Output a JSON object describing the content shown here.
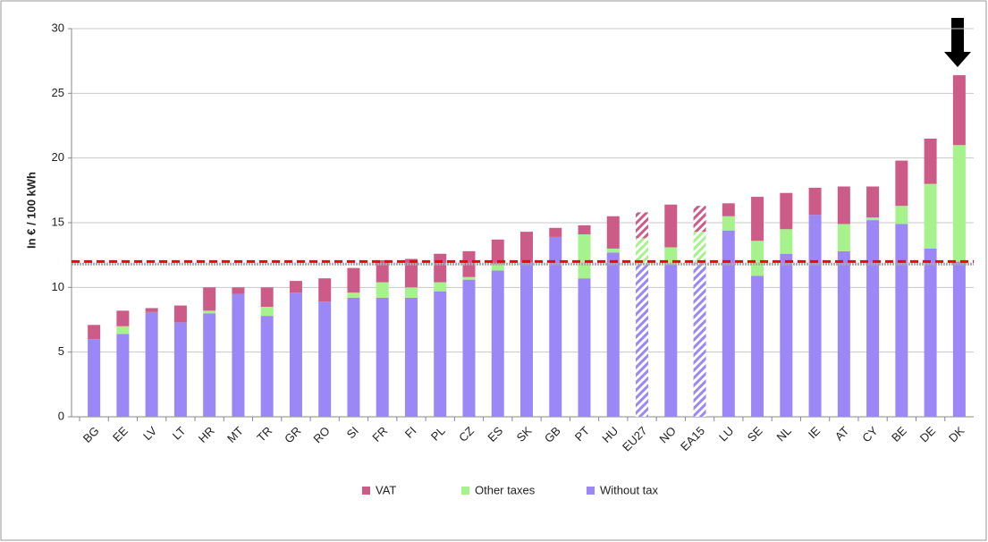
{
  "chart_data": {
    "type": "stacked_bar",
    "y_label": "In € / 100 kWh",
    "categories": [
      "BG",
      "EE",
      "LV",
      "LT",
      "HR",
      "MT",
      "TR",
      "GR",
      "RO",
      "SI",
      "FR",
      "FI",
      "PL",
      "CZ",
      "ES",
      "SK",
      "GB",
      "PT",
      "HU",
      "EU27",
      "NO",
      "EA15",
      "LU",
      "SE",
      "NL",
      "IE",
      "AT",
      "CY",
      "BE",
      "DE",
      "DK"
    ],
    "series": [
      {
        "name": "Without tax",
        "color": "#9b87f5",
        "values": [
          6.0,
          6.4,
          8.1,
          7.3,
          8.0,
          9.5,
          7.8,
          9.6,
          8.9,
          9.2,
          9.2,
          9.2,
          9.7,
          10.6,
          11.3,
          11.9,
          13.9,
          10.7,
          12.7,
          11.8,
          11.8,
          11.9,
          14.4,
          10.9,
          12.6,
          15.6,
          12.8,
          15.2,
          14.9,
          13.0,
          12.0
        ]
      },
      {
        "name": "Other taxes",
        "color": "#a6f28c",
        "values": [
          0,
          0.6,
          0,
          0,
          0.2,
          0,
          0.7,
          0,
          0,
          0.4,
          1.2,
          0.8,
          0.7,
          0.2,
          0.5,
          0,
          0,
          3.4,
          0.3,
          2.0,
          1.3,
          2.4,
          1.1,
          2.7,
          1.9,
          0,
          2.1,
          0.2,
          1.4,
          5.0,
          9.0
        ]
      },
      {
        "name": "VAT",
        "color": "#cc5b88",
        "values": [
          1.1,
          1.2,
          0.3,
          1.3,
          1.8,
          0.5,
          1.5,
          0.9,
          1.8,
          1.9,
          1.7,
          2.2,
          2.2,
          2.0,
          1.9,
          2.4,
          0.7,
          0.7,
          2.5,
          2.0,
          3.3,
          2.0,
          1.0,
          3.4,
          2.8,
          2.1,
          2.9,
          2.4,
          3.5,
          3.5,
          5.4
        ]
      }
    ],
    "legend_order": [
      2,
      1,
      0
    ],
    "hatched": [
      19,
      21
    ],
    "reference_lines": [
      {
        "value": 11.8,
        "color": "#aaaaaa"
      },
      {
        "value": 12.0,
        "color": "#ff0000"
      }
    ],
    "ylim": [
      0,
      30
    ],
    "yticks": [
      0,
      5,
      10,
      15,
      20,
      25,
      30
    ],
    "grid": true
  }
}
